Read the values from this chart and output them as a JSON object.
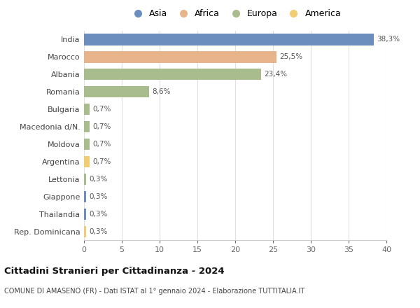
{
  "countries": [
    "India",
    "Marocco",
    "Albania",
    "Romania",
    "Bulgaria",
    "Macedonia d/N.",
    "Moldova",
    "Argentina",
    "Lettonia",
    "Giappone",
    "Thailandia",
    "Rep. Dominicana"
  ],
  "values": [
    38.3,
    25.5,
    23.4,
    8.6,
    0.7,
    0.7,
    0.7,
    0.7,
    0.3,
    0.3,
    0.3,
    0.3
  ],
  "labels": [
    "38,3%",
    "25,5%",
    "23,4%",
    "8,6%",
    "0,7%",
    "0,7%",
    "0,7%",
    "0,7%",
    "0,3%",
    "0,3%",
    "0,3%",
    "0,3%"
  ],
  "continents": [
    "Asia",
    "Africa",
    "Europa",
    "Europa",
    "Europa",
    "Europa",
    "Europa",
    "America",
    "Europa",
    "Asia",
    "Asia",
    "America"
  ],
  "colors": {
    "Asia": "#6b8ebf",
    "Africa": "#e8b48c",
    "Europa": "#a8bc8e",
    "America": "#f0cc72"
  },
  "legend_order": [
    "Asia",
    "Africa",
    "Europa",
    "America"
  ],
  "xlim": [
    0,
    40
  ],
  "xticks": [
    0,
    5,
    10,
    15,
    20,
    25,
    30,
    35,
    40
  ],
  "title": "Cittadini Stranieri per Cittadinanza - 2024",
  "subtitle": "COMUNE DI AMASENO (FR) - Dati ISTAT al 1° gennaio 2024 - Elaborazione TUTTITALIA.IT",
  "bg_color": "#ffffff",
  "grid_color": "#e0e0e0"
}
